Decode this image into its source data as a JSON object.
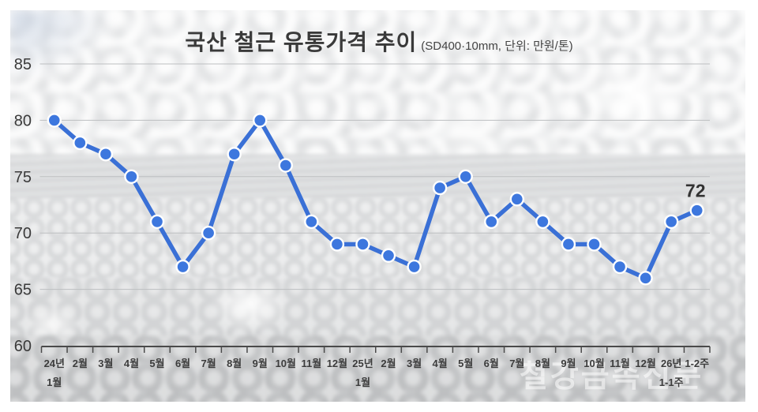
{
  "title": {
    "main": "국산 철근 유통가격 추이",
    "spec": "(SD400·10mm, 단위: 만원/톤)"
  },
  "watermark": {
    "text": "철강금속신문"
  },
  "chart_data": {
    "type": "line",
    "title": "국산 철근 유통가격 추이",
    "subtitle": "(SD400·10mm, 단위: 만원/톤)",
    "unit": "만원/톤",
    "categories": [
      "24년\n1월",
      "2월",
      "3월",
      "4월",
      "5월",
      "6월",
      "7월",
      "8월",
      "9월",
      "10월",
      "11월",
      "12월",
      "25년\n1월",
      "2월",
      "3월",
      "4월",
      "5월",
      "6월",
      "7월",
      "8월",
      "9월",
      "10월",
      "11월",
      "12월",
      "26년\n1-1주",
      "1-2주"
    ],
    "values": [
      80,
      78,
      77,
      75,
      71,
      67,
      70,
      77,
      80,
      76,
      71,
      69,
      69,
      68,
      67,
      74,
      75,
      71,
      73,
      71,
      69,
      69,
      67,
      66,
      71,
      72
    ],
    "ylim": [
      60,
      85
    ],
    "yticks": [
      60,
      65,
      70,
      75,
      80,
      85
    ],
    "grid": true,
    "legend": "none",
    "end_label": "72",
    "line_color": "#3a70d6",
    "marker_color": "#3d77de",
    "marker_ring_color": "#ffffff",
    "grid_color": "#bdbfc1",
    "axis_color": "#4a4a4a",
    "tick_label_color": "#3a3a3a",
    "xlabel": "",
    "ylabel": ""
  }
}
